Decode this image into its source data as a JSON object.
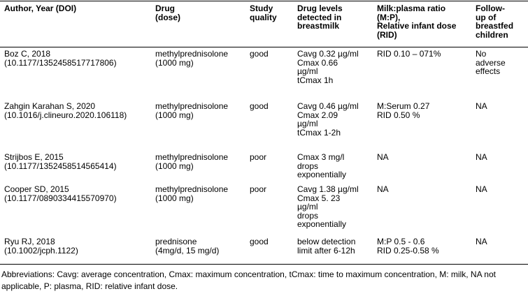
{
  "table": {
    "headers": [
      "Author, Year (DOI)",
      "Drug\n(dose)",
      "Study\nquality",
      "Drug levels\ndetected in\nbreastmilk",
      "Milk:plasma ratio\n(M:P),\nRelative infant dose\n(RID)",
      "Follow-\nup of\nbreastfed\nchildren"
    ],
    "rows": [
      {
        "author": "Boz C, 2018\n(10.1177/1352458517717806)",
        "drug": "methylprednisolone\n(1000 mg)",
        "quality": "good",
        "levels": "Cavg 0.32 µg/ml\nCmax 0.66\nµg/ml\ntCmax 1h",
        "ratio": "RID 0.10 – 071%",
        "followup": "No\nadverse\neffects"
      },
      {
        "author": "Zahgin Karahan S, 2020\n(10.1016/j.clineuro.2020.106118)",
        "drug": "methylprednisolone\n(1000 mg)",
        "quality": "good",
        "levels": "Cavg 0.46 µg/ml\nCmax 2.09\nµg/ml\ntCmax 1-2h",
        "ratio": "M:Serum 0.27\nRID 0.50 %",
        "followup": "NA"
      },
      {
        "author": "Strijbos E, 2015\n(10.1177/1352458514565414)",
        "drug": "methylprednisolone\n(1000 mg)",
        "quality": "poor",
        "levels": "Cmax 3 mg/l\ndrops\nexponentially",
        "ratio": "NA",
        "followup": "NA"
      },
      {
        "author": "Cooper SD, 2015\n(10.1177/0890334415570970)",
        "drug": "methylprednisolone\n(1000 mg)",
        "quality": "poor",
        "levels": "Cavg 1.38 µg/ml\nCmax 5. 23\nµg/ml\ndrops\nexponentially",
        "ratio": "NA",
        "followup": "NA"
      },
      {
        "author": "Ryu RJ, 2018\n(10.1002/jcph.1122)",
        "drug": "prednisone\n(4mg/d, 15 mg/d)",
        "quality": "good",
        "levels": "below detection\nlimit after 6-12h",
        "ratio": "M:P 0.5 - 0.6\nRID 0.25-0.58 %",
        "followup": "NA"
      }
    ]
  },
  "footnote": "Abbreviations: Cavg: average concentration, Cmax: maximum concentration, tCmax: time to maximum concentration, M: milk, NA not applicable, P: plasma, RID: relative infant dose."
}
